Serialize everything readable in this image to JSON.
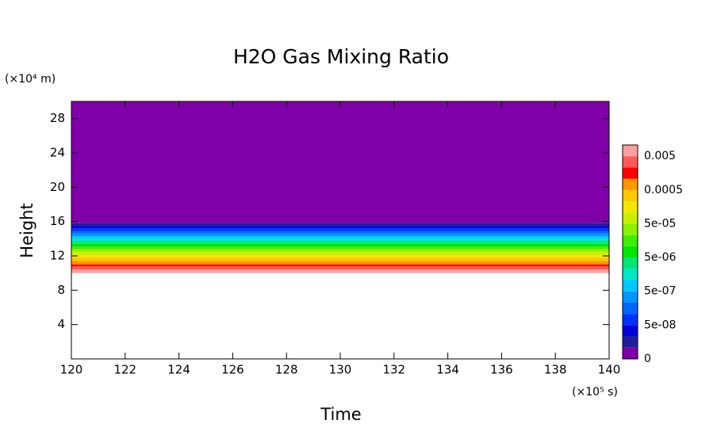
{
  "chart_data": {
    "type": "contour",
    "title": "H2O Gas Mixing Ratio",
    "x_label": "Time",
    "y_label": "Height",
    "x_unit": "(×10⁵ s)",
    "y_unit": "(×10⁴ m)",
    "xlim": [
      120,
      140
    ],
    "xticks": [
      120,
      122,
      124,
      126,
      128,
      130,
      132,
      134,
      136,
      138,
      140
    ],
    "ylim": [
      0,
      30
    ],
    "yticks": [
      4,
      8,
      12,
      16,
      20,
      24,
      28
    ],
    "levels": [
      0,
      1e-08,
      2e-08,
      5e-08,
      1e-07,
      2e-07,
      5e-07,
      1e-06,
      2e-06,
      5e-06,
      1e-05,
      2e-05,
      5e-05,
      0.0001,
      0.0002,
      0.0005,
      0.001,
      0.002,
      0.005,
      0.01
    ],
    "boundary_heights": [
      null,
      15.8,
      15.5,
      15.2,
      14.9,
      14.6,
      14.3,
      14.0,
      13.7,
      13.4,
      13.1,
      12.8,
      12.5,
      12.1,
      11.8,
      11.4,
      11.0,
      10.8,
      10.4,
      10.0
    ],
    "colors": [
      "#7f00a8",
      "#1e1e9a",
      "#0000dc",
      "#0032ff",
      "#0064ff",
      "#0096ff",
      "#00c8ff",
      "#00e6c8",
      "#00e678",
      "#00e600",
      "#3cf000",
      "#8cf000",
      "#c8f000",
      "#f0e600",
      "#ffc800",
      "#ff9600",
      "#ff0000",
      "#ff5a5a",
      "#ffa0a0"
    ],
    "colorbar_ticks": [
      0,
      {
        "value": 5e-08,
        "label": "5e-08"
      },
      {
        "value": 5e-07,
        "label": "5e-07"
      },
      {
        "value": 5e-06,
        "label": "5e-06"
      },
      {
        "value": 5e-05,
        "label": "5e-05"
      },
      0.0005,
      0.005
    ]
  }
}
